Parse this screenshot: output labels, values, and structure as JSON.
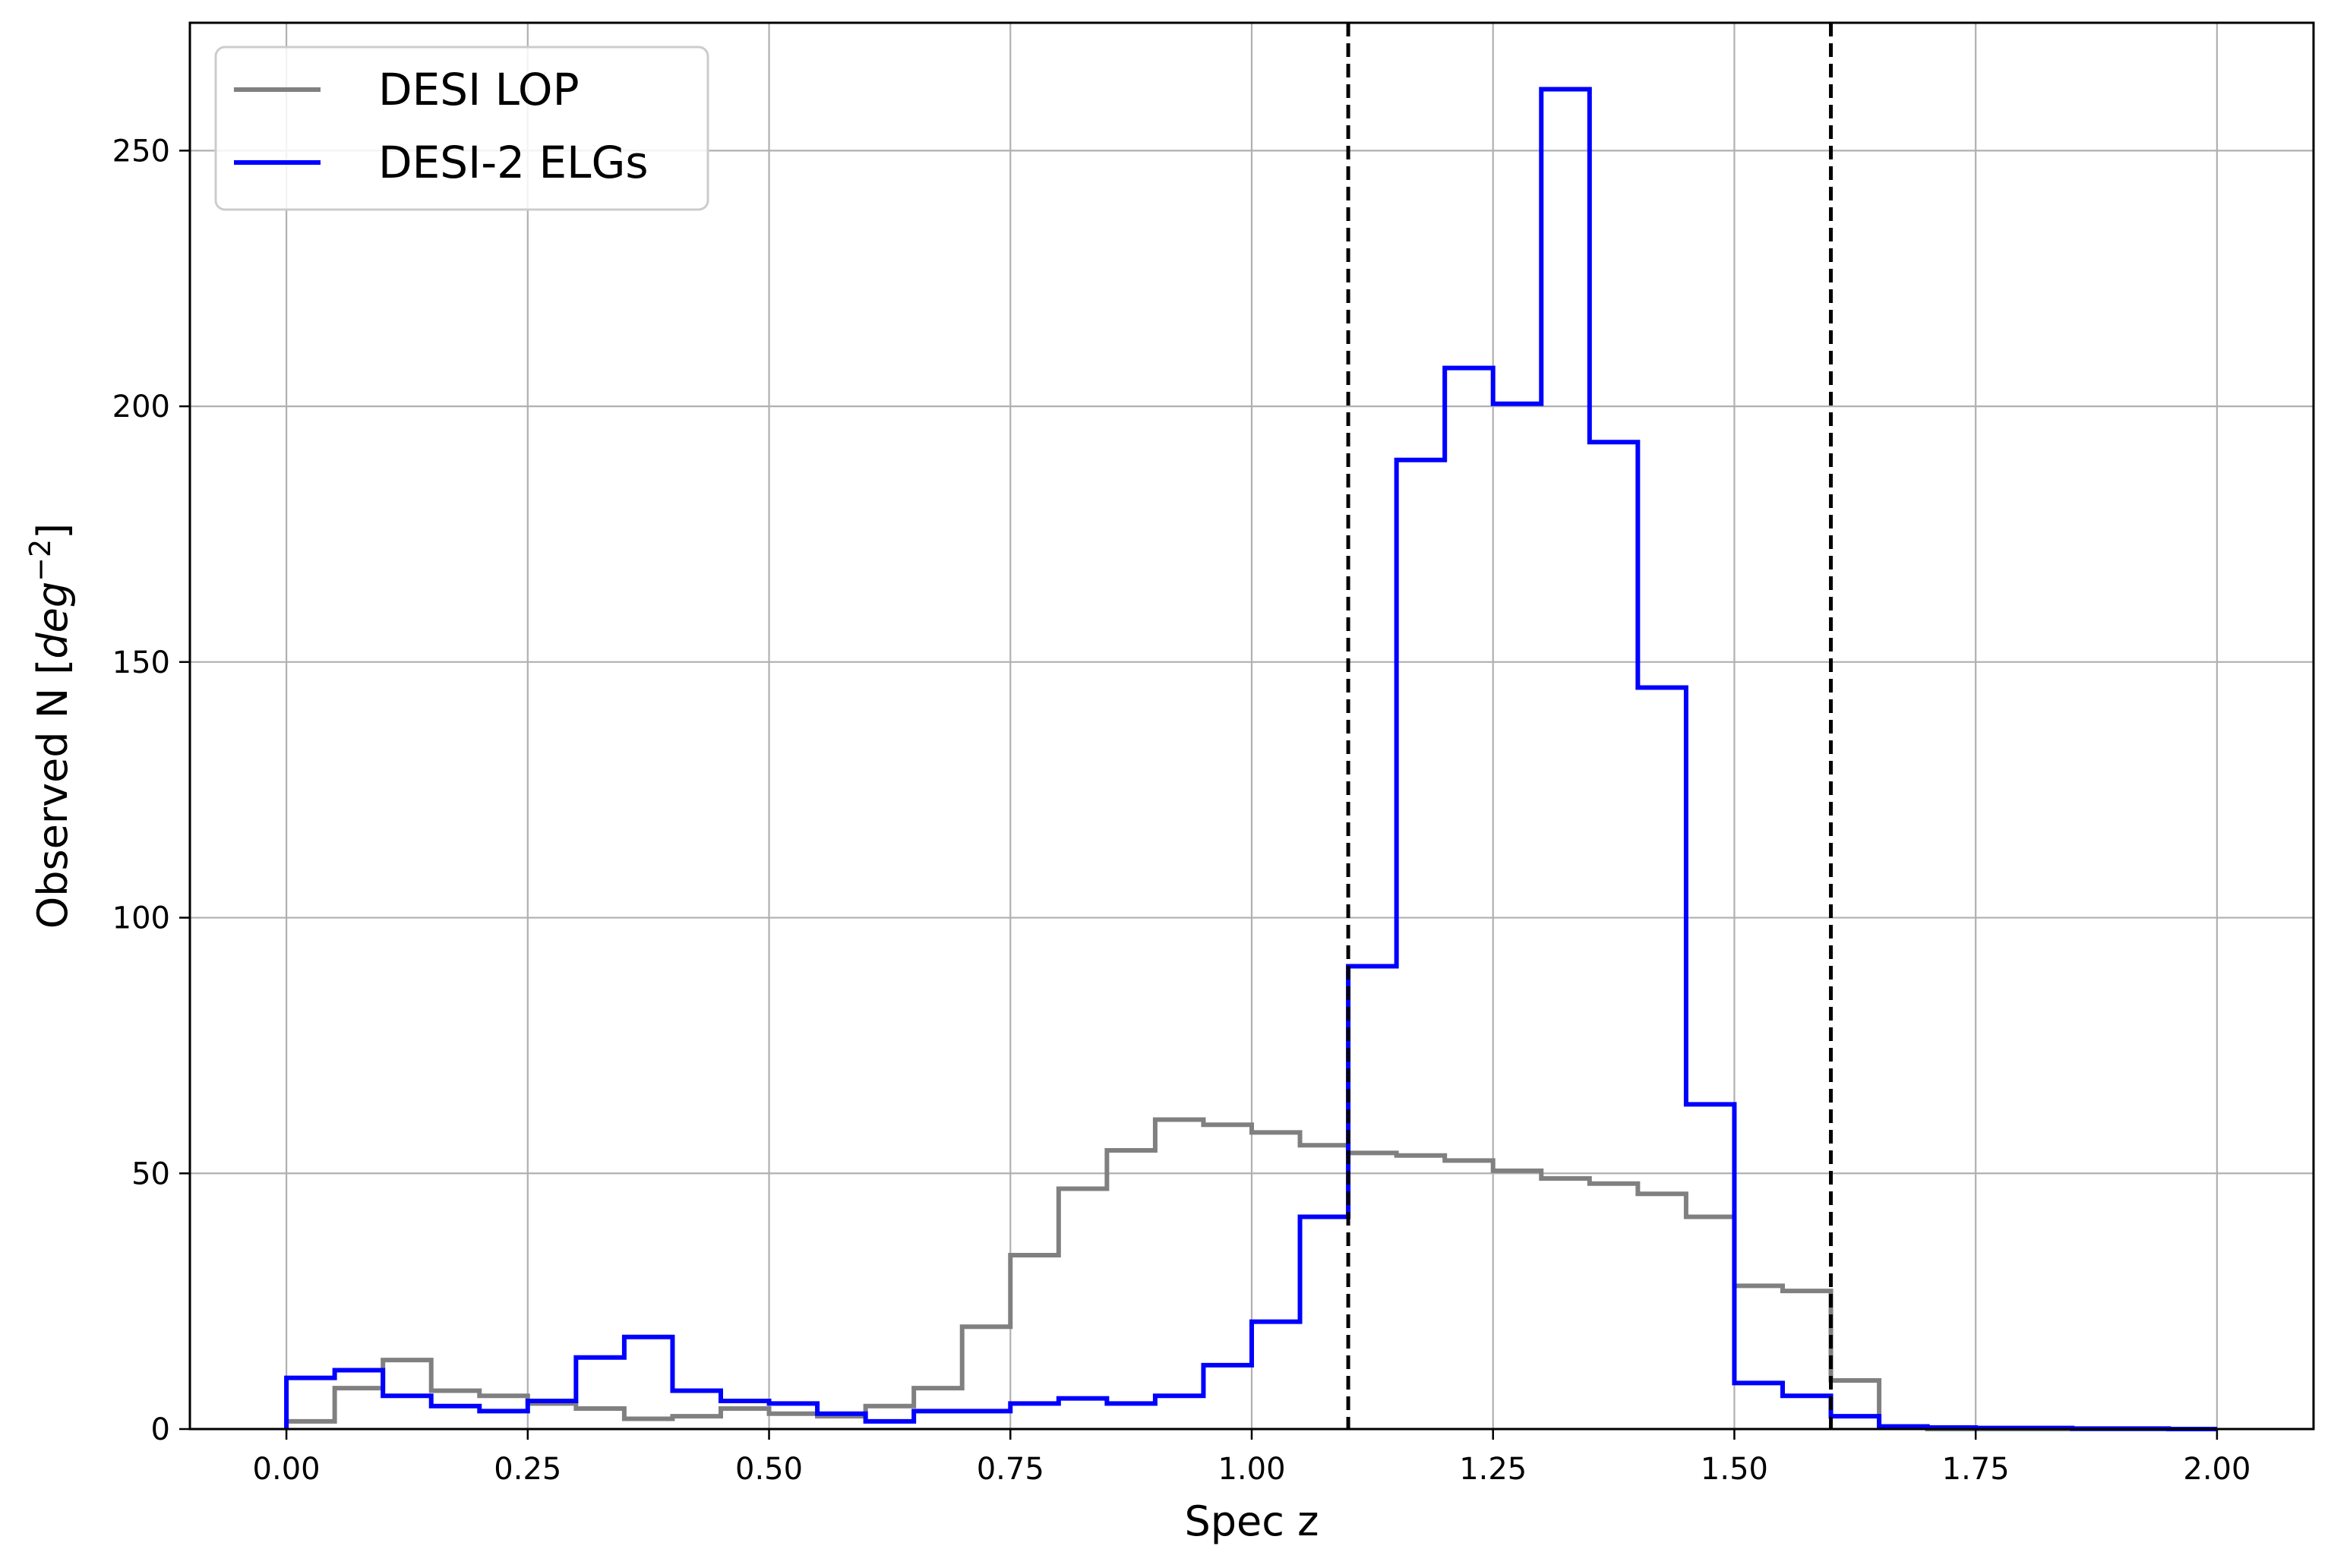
{
  "chart_data": {
    "type": "line",
    "title": "",
    "xlabel": "Spec z",
    "ylabel_prefix": "Observed N [",
    "ylabel_math": "deg",
    "ylabel_exp": "−2",
    "ylabel_suffix": "]",
    "xlim": [
      -0.1,
      2.1
    ],
    "ylim": [
      0,
      275
    ],
    "grid": true,
    "legend_position": "top-left",
    "xticks": [
      {
        "value": 0.0,
        "label": "0.00"
      },
      {
        "value": 0.25,
        "label": "0.25"
      },
      {
        "value": 0.5,
        "label": "0.50"
      },
      {
        "value": 0.75,
        "label": "0.75"
      },
      {
        "value": 1.0,
        "label": "1.00"
      },
      {
        "value": 1.25,
        "label": "1.25"
      },
      {
        "value": 1.5,
        "label": "1.50"
      },
      {
        "value": 1.75,
        "label": "1.75"
      },
      {
        "value": 2.0,
        "label": "2.00"
      }
    ],
    "yticks": [
      {
        "value": 0,
        "label": "0"
      },
      {
        "value": 50,
        "label": "50"
      },
      {
        "value": 100,
        "label": "100"
      },
      {
        "value": 150,
        "label": "150"
      },
      {
        "value": 200,
        "label": "200"
      },
      {
        "value": 250,
        "label": "250"
      }
    ],
    "bin_edges": [
      0.0,
      0.05,
      0.1,
      0.15,
      0.2,
      0.25,
      0.3,
      0.35,
      0.4,
      0.45,
      0.5,
      0.55,
      0.6,
      0.65,
      0.7,
      0.75,
      0.8,
      0.85,
      0.9,
      0.95,
      1.0,
      1.05,
      1.1,
      1.15,
      1.2,
      1.25,
      1.3,
      1.35,
      1.4,
      1.45,
      1.5,
      1.55,
      1.6,
      1.65,
      1.7,
      1.75,
      1.8,
      1.85,
      1.9,
      1.95,
      2.0
    ],
    "series": [
      {
        "name": "DESI LOP",
        "color": "#808080",
        "style": "step",
        "values": [
          1.5,
          8,
          13.5,
          7.5,
          6.5,
          5,
          4,
          2,
          2.5,
          4,
          3,
          2.5,
          4.5,
          8,
          20,
          34,
          47,
          54.5,
          60.5,
          59.5,
          58,
          55.5,
          54,
          53.5,
          52.5,
          50.5,
          49,
          48,
          46,
          41.5,
          28,
          27,
          9.5,
          0.5,
          0,
          0,
          0,
          0,
          0,
          0
        ]
      },
      {
        "name": "DESI-2 ELGs",
        "color": "#0000ff",
        "style": "step",
        "values": [
          10,
          11.5,
          6.5,
          4.5,
          3.5,
          5.5,
          14,
          18,
          7.5,
          5.5,
          5,
          3,
          1.5,
          3.5,
          3.5,
          5,
          6,
          5,
          6.5,
          12.5,
          21,
          41.5,
          90.5,
          189.5,
          207.5,
          200.5,
          262,
          193,
          145,
          63.5,
          9,
          6.5,
          2.5,
          0.5,
          0.3,
          0.2,
          0.2,
          0.1,
          0.1,
          0
        ]
      }
    ],
    "vlines": [
      {
        "x": 1.1,
        "color": "#000000",
        "style": "dashed"
      },
      {
        "x": 1.6,
        "color": "#000000",
        "style": "dashed"
      }
    ]
  }
}
